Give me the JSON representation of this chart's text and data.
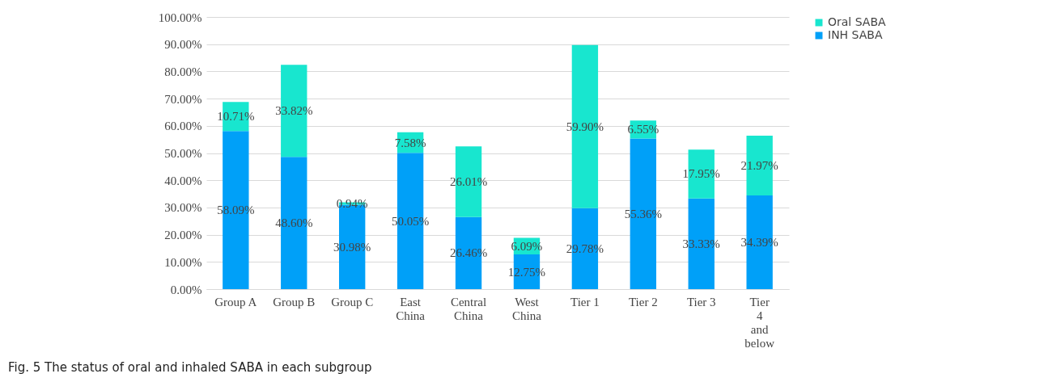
{
  "chart_data": {
    "type": "bar",
    "stacked": true,
    "categories": [
      "Group A",
      "Group B",
      "Group C",
      "East China",
      "Central China",
      "West China",
      "Tier 1",
      "Tier 2",
      "Tier 3",
      "Tier 4 and below"
    ],
    "series": [
      {
        "name": "INH SABA",
        "color": "#00a0f8",
        "values": [
          58.09,
          48.6,
          30.98,
          50.05,
          26.46,
          12.75,
          29.78,
          55.36,
          33.33,
          34.39
        ],
        "value_labels": [
          "58.09%",
          "48.60%",
          "30.98%",
          "50.05%",
          "26.46%",
          "12.75%",
          "29.78%",
          "55.36%",
          "33.33%",
          "34.39%"
        ]
      },
      {
        "name": "Oral SABA",
        "color": "#18e6cf",
        "values": [
          10.71,
          33.82,
          0.94,
          7.58,
          26.01,
          6.09,
          59.9,
          6.55,
          17.95,
          21.97
        ],
        "value_labels": [
          "10.71%",
          "33.82%",
          "0.94%",
          "7.58%",
          "26.01%",
          "6.09%",
          "59.90%",
          "6.55%",
          "17.95%",
          "21.97%"
        ]
      }
    ],
    "ylim": [
      0,
      100
    ],
    "yticks": [
      {
        "value": 0,
        "label": "0.00%"
      },
      {
        "value": 10,
        "label": "10.00%"
      },
      {
        "value": 20,
        "label": "20.00%"
      },
      {
        "value": 30,
        "label": "30.00%"
      },
      {
        "value": 40,
        "label": "40.00%"
      },
      {
        "value": 50,
        "label": "50.00%"
      },
      {
        "value": 60,
        "label": "60.00%"
      },
      {
        "value": 70,
        "label": "70.00%"
      },
      {
        "value": 80,
        "label": "80.00%"
      },
      {
        "value": 90,
        "label": "90.00%"
      },
      {
        "value": 100,
        "label": "100.00%"
      }
    ],
    "grid": "y",
    "legend": "right",
    "annotations": [
      "Fig. 5  The status of oral and inhaled SABA in each subgroup"
    ]
  }
}
